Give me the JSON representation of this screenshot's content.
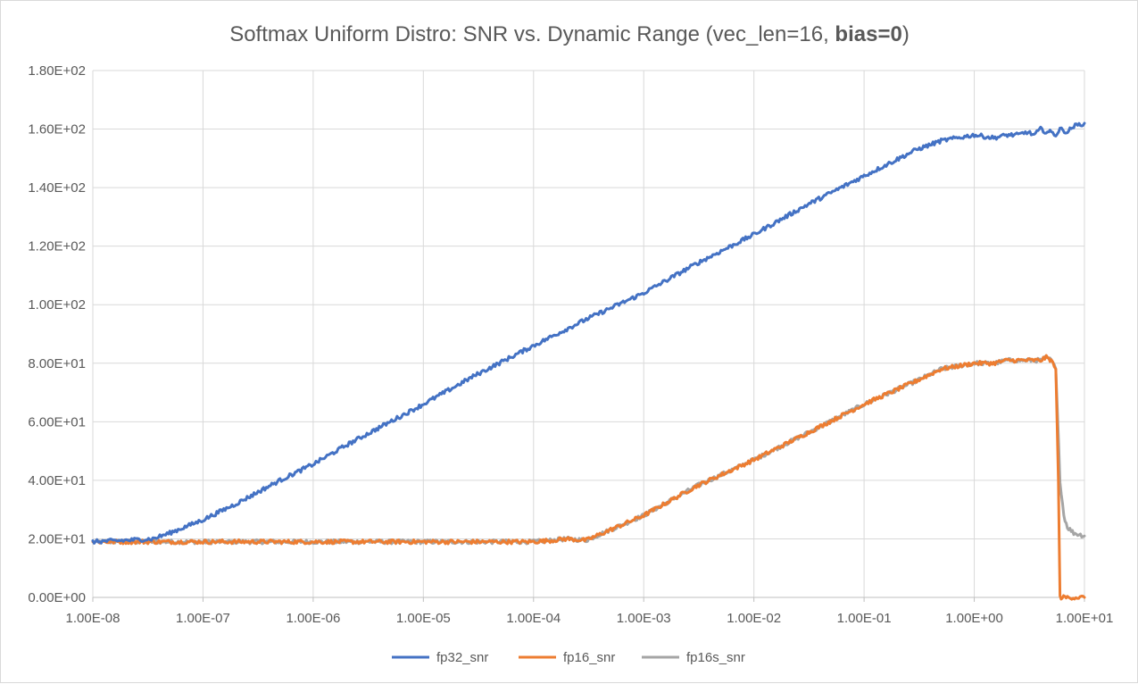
{
  "chart_data": {
    "type": "line",
    "title": "Softmax Uniform Distro: SNR vs. Dynamic Range (vec_len=16, ",
    "title_bold": "bias=0",
    "title_tail": ")",
    "xlabel": "",
    "ylabel": "",
    "x_scale": "log",
    "xlim": [
      1e-08,
      10
    ],
    "ylim": [
      0,
      180
    ],
    "grid": true,
    "legend_position": "bottom",
    "x_ticks": [
      {
        "value": 1e-08,
        "label": "1.00E-08"
      },
      {
        "value": 1e-07,
        "label": "1.00E-07"
      },
      {
        "value": 1e-06,
        "label": "1.00E-06"
      },
      {
        "value": 1e-05,
        "label": "1.00E-05"
      },
      {
        "value": 0.0001,
        "label": "1.00E-04"
      },
      {
        "value": 0.001,
        "label": "1.00E-03"
      },
      {
        "value": 0.01,
        "label": "1.00E-02"
      },
      {
        "value": 0.1,
        "label": "1.00E-01"
      },
      {
        "value": 1,
        "label": "1.00E+00"
      },
      {
        "value": 10,
        "label": "1.00E+01"
      }
    ],
    "y_ticks": [
      {
        "value": 0,
        "label": "0.00E+00"
      },
      {
        "value": 20,
        "label": "2.00E+01"
      },
      {
        "value": 40,
        "label": "4.00E+01"
      },
      {
        "value": 60,
        "label": "6.00E+01"
      },
      {
        "value": 80,
        "label": "8.00E+01"
      },
      {
        "value": 100,
        "label": "1.00E+02"
      },
      {
        "value": 120,
        "label": "1.20E+02"
      },
      {
        "value": 140,
        "label": "1.40E+02"
      },
      {
        "value": 160,
        "label": "1.60E+02"
      },
      {
        "value": 180,
        "label": "1.80E+02"
      }
    ],
    "series": [
      {
        "name": "fp32_snr",
        "color": "#4472c4",
        "x": [
          1e-08,
          2e-08,
          3.5e-08,
          5e-08,
          1e-07,
          2e-07,
          5e-07,
          1e-06,
          2e-06,
          5e-06,
          1e-05,
          3e-05,
          0.0001,
          0.0003,
          0.001,
          0.003,
          0.01,
          0.03,
          0.1,
          0.3,
          0.5,
          1,
          1.5,
          2,
          2.5,
          3,
          3.5,
          4,
          4.5,
          5,
          5.5,
          6,
          7,
          8,
          10
        ],
        "y": [
          19,
          19.5,
          20,
          22,
          26.5,
          32,
          40,
          45.5,
          52,
          60,
          66,
          76,
          86,
          95,
          104,
          114,
          124,
          134,
          144,
          153,
          156,
          158,
          157,
          158,
          158,
          159,
          158,
          160,
          159,
          159,
          158,
          160,
          159,
          161,
          162
        ]
      },
      {
        "name": "fp16_snr",
        "color": "#ed7d31",
        "x": [
          1e-08,
          1e-07,
          1e-06,
          1e-05,
          0.0001,
          0.00015,
          0.0002,
          0.0003,
          0.001,
          0.003,
          0.01,
          0.03,
          0.1,
          0.3,
          0.5,
          1,
          1.5,
          2,
          3,
          4,
          4.5,
          5,
          5.5,
          5.8,
          6,
          6.3,
          7,
          10
        ],
        "y": [
          19,
          19,
          19,
          19,
          19,
          19.5,
          20,
          19.5,
          28,
          38,
          47,
          56,
          66,
          74,
          78,
          80,
          80,
          81,
          81,
          81,
          82,
          81,
          78,
          40,
          0,
          0,
          0,
          0
        ]
      },
      {
        "name": "fp16s_snr",
        "color": "#a5a5a5",
        "x": [
          1e-08,
          1e-07,
          1e-06,
          1e-05,
          0.0001,
          0.00015,
          0.0002,
          0.0003,
          0.001,
          0.003,
          0.01,
          0.03,
          0.1,
          0.3,
          0.5,
          1,
          1.5,
          2,
          3,
          4,
          4.5,
          5,
          5.5,
          6,
          6.5,
          7,
          8,
          10
        ],
        "y": [
          19,
          19,
          19,
          19,
          19,
          19.5,
          20,
          19.5,
          28,
          38,
          47,
          56,
          66,
          74,
          78,
          80,
          80,
          81,
          81,
          81,
          82,
          81,
          78,
          40,
          28,
          24,
          22,
          21
        ]
      }
    ]
  }
}
